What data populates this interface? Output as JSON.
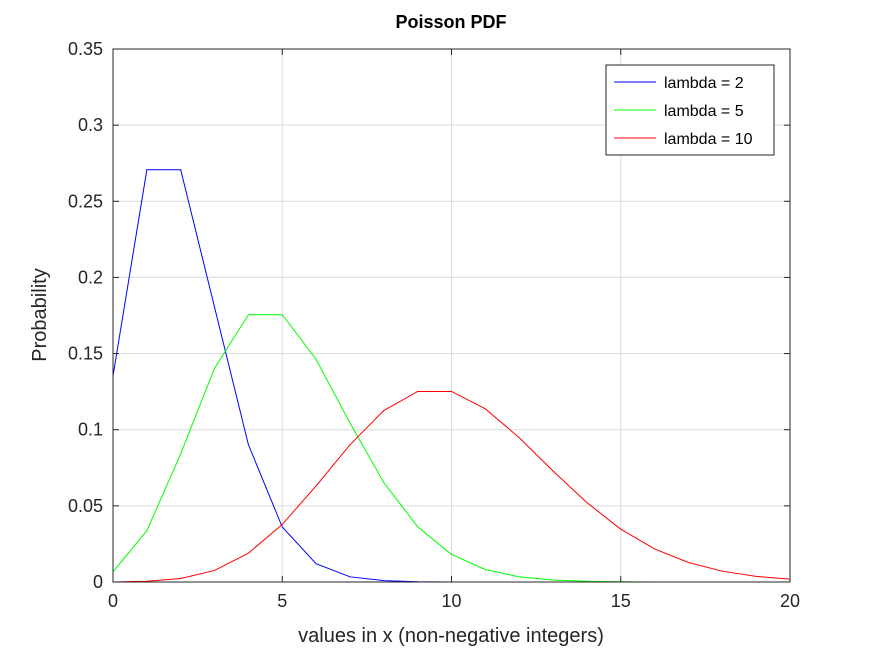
{
  "chart_data": {
    "type": "line",
    "title": "Poisson PDF",
    "xlabel": "values in x (non-negative integers)",
    "ylabel": "Probability",
    "xlim": [
      0,
      20
    ],
    "ylim": [
      0,
      0.35
    ],
    "xticks": [
      "0",
      "5",
      "10",
      "15",
      "20"
    ],
    "yticks": [
      "0",
      "0.05",
      "0.1",
      "0.15",
      "0.2",
      "0.25",
      "0.3",
      "0.35"
    ],
    "grid": true,
    "legend_position": "top-right",
    "series": [
      {
        "name": "lambda = 2",
        "color": "#0000ff",
        "x": [
          0,
          1,
          2,
          3,
          4,
          5,
          6,
          7,
          8,
          9,
          10,
          11,
          12,
          13,
          14,
          15
        ],
        "values": [
          0.1353,
          0.2707,
          0.2707,
          0.1804,
          0.0902,
          0.0361,
          0.012,
          0.0034,
          0.0009,
          0.0002,
          0.0,
          0,
          0,
          0,
          0,
          0
        ]
      },
      {
        "name": "lambda = 5",
        "color": "#00ff00",
        "x": [
          0,
          1,
          2,
          3,
          4,
          5,
          6,
          7,
          8,
          9,
          10,
          11,
          12,
          13,
          14,
          15,
          16,
          17,
          18,
          19,
          20
        ],
        "values": [
          0.0067,
          0.0337,
          0.0842,
          0.1404,
          0.1755,
          0.1755,
          0.1462,
          0.1044,
          0.0653,
          0.0363,
          0.0181,
          0.0082,
          0.0034,
          0.0013,
          0.0005,
          0.0002,
          0.0,
          0,
          0,
          0,
          0
        ]
      },
      {
        "name": "lambda = 10",
        "color": "#ff0000",
        "x": [
          0,
          1,
          2,
          3,
          4,
          5,
          6,
          7,
          8,
          9,
          10,
          11,
          12,
          13,
          14,
          15,
          16,
          17,
          18,
          19,
          20
        ],
        "values": [
          0.0,
          0.0005,
          0.0023,
          0.0076,
          0.0189,
          0.0378,
          0.0631,
          0.0901,
          0.1126,
          0.1251,
          0.1251,
          0.1137,
          0.0948,
          0.0729,
          0.0521,
          0.0347,
          0.0217,
          0.0128,
          0.0071,
          0.0037,
          0.0019
        ]
      }
    ]
  }
}
